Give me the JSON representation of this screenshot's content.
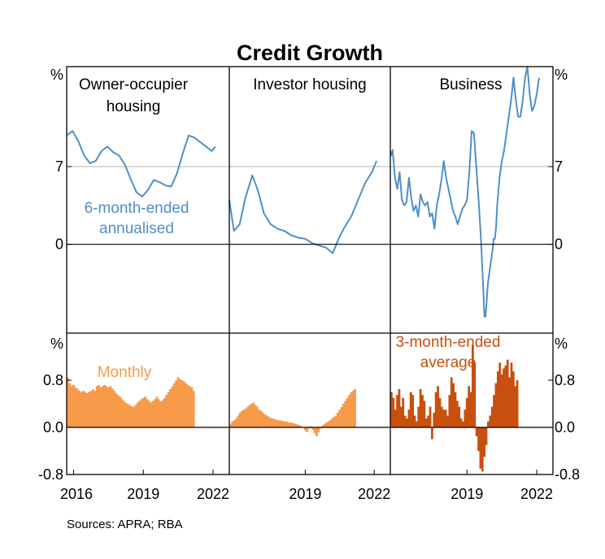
{
  "chart_data": {
    "type": "line+bar",
    "title": "Credit Growth",
    "source": "Sources: APRA; RBA",
    "colors": {
      "owner_line": "#4f8fc8",
      "investor_line": "#4f8fc8",
      "business_line": "#4f8fc8",
      "owner_bar": "#f79a4a",
      "investor_bar": "#f79a4a",
      "business_bar": "#c8500f",
      "refline": "#b4b4b4",
      "axis": "#000000"
    },
    "top": {
      "unit": "%",
      "ylim": [
        -8,
        16
      ],
      "yticks": [
        {
          "value": 0,
          "label": "0"
        },
        {
          "value": 7,
          "label": "7"
        }
      ],
      "reference_line": 7
    },
    "bottom": {
      "unit": "%",
      "ylim": [
        -0.8,
        1.6
      ],
      "yticks": [
        {
          "value": -0.8,
          "label": "-0.8"
        },
        {
          "value": 0.0,
          "label": "0.0"
        },
        {
          "value": 0.8,
          "label": "0.8"
        }
      ]
    },
    "xlim": [
      2015.7,
      2022.7
    ],
    "panels": [
      {
        "id": "owner",
        "title_lines": [
          "Owner-occupier",
          "housing"
        ],
        "xticks": [
          {
            "value": 2016,
            "label": "2016"
          },
          {
            "value": 2019,
            "label": "2019"
          },
          {
            "value": 2022,
            "label": "2022"
          }
        ],
        "line_label_lines": [
          "6-month-ended",
          "annualised"
        ],
        "bar_label_lines": [
          "Monthly"
        ],
        "line": {
          "x": [
            2015.7,
            2015.95,
            2016.2,
            2016.45,
            2016.7,
            2016.95,
            2017.2,
            2017.45,
            2017.7,
            2017.95,
            2018.2,
            2018.45,
            2018.7,
            2018.95,
            2019.2,
            2019.45,
            2019.7,
            2019.95,
            2020.2,
            2020.45,
            2020.7,
            2020.95,
            2021.2,
            2021.45,
            2021.7,
            2021.95,
            2022.1
          ],
          "y": [
            9.8,
            10.2,
            9.3,
            8.0,
            7.3,
            7.5,
            8.4,
            8.8,
            8.3,
            8.0,
            7.2,
            5.9,
            4.7,
            4.3,
            4.9,
            5.8,
            5.6,
            5.3,
            5.2,
            6.4,
            8.2,
            9.8,
            9.6,
            9.2,
            8.8,
            8.4,
            8.8
          ]
        },
        "bars": {
          "x0": 2015.75,
          "step": 0.0833,
          "values": [
            0.85,
            0.75,
            0.7,
            0.72,
            0.68,
            0.65,
            0.62,
            0.6,
            0.62,
            0.6,
            0.58,
            0.6,
            0.62,
            0.65,
            0.62,
            0.7,
            0.72,
            0.68,
            0.7,
            0.72,
            0.7,
            0.68,
            0.7,
            0.66,
            0.62,
            0.58,
            0.55,
            0.52,
            0.48,
            0.45,
            0.42,
            0.4,
            0.38,
            0.36,
            0.35,
            0.38,
            0.42,
            0.45,
            0.48,
            0.5,
            0.52,
            0.48,
            0.45,
            0.42,
            0.45,
            0.48,
            0.52,
            0.48,
            0.44,
            0.46,
            0.5,
            0.55,
            0.6,
            0.65,
            0.7,
            0.75,
            0.8,
            0.85,
            0.82,
            0.8,
            0.78,
            0.75,
            0.72,
            0.7,
            0.68,
            0.62
          ]
        }
      },
      {
        "id": "investor",
        "title_lines": [
          "Investor housing"
        ],
        "xticks": [
          {
            "value": 2019,
            "label": "2019"
          },
          {
            "value": 2022,
            "label": "2022"
          }
        ],
        "line": {
          "x": [
            2015.7,
            2015.9,
            2016.15,
            2016.4,
            2016.7,
            2016.95,
            2017.2,
            2017.5,
            2017.8,
            2018.1,
            2018.4,
            2018.7,
            2019.0,
            2019.3,
            2019.6,
            2019.9,
            2020.2,
            2020.45,
            2020.7,
            2021.0,
            2021.3,
            2021.6,
            2021.9,
            2022.1
          ],
          "y": [
            4.0,
            1.2,
            1.8,
            4.2,
            6.2,
            4.8,
            2.8,
            1.8,
            1.4,
            1.2,
            0.8,
            0.6,
            0.5,
            0.1,
            -0.1,
            -0.3,
            -0.8,
            0.5,
            1.5,
            2.5,
            4.0,
            5.5,
            6.5,
            7.5
          ]
        },
        "bars": {
          "x0": 2015.75,
          "step": 0.0833,
          "values": [
            0.05,
            0.1,
            0.12,
            0.15,
            0.2,
            0.25,
            0.28,
            0.3,
            0.32,
            0.35,
            0.38,
            0.4,
            0.42,
            0.38,
            0.35,
            0.3,
            0.28,
            0.25,
            0.22,
            0.2,
            0.18,
            0.16,
            0.15,
            0.14,
            0.13,
            0.12,
            0.12,
            0.11,
            0.1,
            0.1,
            0.09,
            0.08,
            0.08,
            0.07,
            0.06,
            0.05,
            0.04,
            0.02,
            0.0,
            -0.05,
            -0.08,
            -0.02,
            0.02,
            -0.04,
            -0.1,
            -0.15,
            -0.08,
            -0.02,
            0.03,
            0.06,
            0.08,
            0.1,
            0.12,
            0.15,
            0.18,
            0.2,
            0.25,
            0.3,
            0.35,
            0.4,
            0.45,
            0.5,
            0.55,
            0.6,
            0.62,
            0.65
          ]
        }
      },
      {
        "id": "business",
        "title_lines": [
          "Business"
        ],
        "xticks": [
          {
            "value": 2019,
            "label": "2019"
          },
          {
            "value": 2022,
            "label": "2022"
          }
        ],
        "bar_label_lines": [
          "3-month-ended",
          "average"
        ],
        "line": {
          "x": [
            2015.7,
            2015.75,
            2015.8,
            2015.9,
            2016.0,
            2016.1,
            2016.2,
            2016.3,
            2016.4,
            2016.5,
            2016.6,
            2016.7,
            2016.8,
            2016.9,
            2017.0,
            2017.1,
            2017.2,
            2017.3,
            2017.4,
            2017.5,
            2017.6,
            2017.7,
            2017.8,
            2017.9,
            2018.0,
            2018.1,
            2018.2,
            2018.3,
            2018.4,
            2018.5,
            2018.6,
            2018.7,
            2018.8,
            2018.9,
            2019.0,
            2019.1,
            2019.2,
            2019.3,
            2019.4,
            2019.5,
            2019.6,
            2019.7,
            2019.75,
            2019.8,
            2019.9,
            2020.0,
            2020.1,
            2020.15,
            2020.2,
            2020.25,
            2020.3,
            2020.4,
            2020.5,
            2020.6,
            2020.7,
            2020.8,
            2020.9,
            2021.0,
            2021.1,
            2021.2,
            2021.3,
            2021.4,
            2021.5,
            2021.6,
            2021.7,
            2021.8,
            2021.9,
            2022.0,
            2022.1
          ],
          "y": [
            8.4,
            8.0,
            8.5,
            6.0,
            5.0,
            6.5,
            4.0,
            3.5,
            3.8,
            6.0,
            4.2,
            3.0,
            3.5,
            2.5,
            4.5,
            3.8,
            3.5,
            3.8,
            2.5,
            2.8,
            1.4,
            3.5,
            4.5,
            5.8,
            7.5,
            6.0,
            5.0,
            4.0,
            3.0,
            2.5,
            1.8,
            2.5,
            3.2,
            3.5,
            4.0,
            6.5,
            10.2,
            10.0,
            7.0,
            4.0,
            0.5,
            -4.0,
            -6.5,
            -6.5,
            -3.5,
            -2.0,
            -0.5,
            0.5,
            0.5,
            1.5,
            3.5,
            6.0,
            7.5,
            8.5,
            10.0,
            11.5,
            13.0,
            15.0,
            13.0,
            11.5,
            11.5,
            13.0,
            15.0,
            16.0,
            13.5,
            12.0,
            12.5,
            13.5,
            15.0
          ]
        },
        "bars": {
          "x0": 2015.75,
          "step": 0.0833,
          "values": [
            0.6,
            0.5,
            0.3,
            0.55,
            0.65,
            0.35,
            0.5,
            0.2,
            0.15,
            0.3,
            0.6,
            0.55,
            0.2,
            0.1,
            0.35,
            0.65,
            0.55,
            0.45,
            0.15,
            0.2,
            0.35,
            -0.2,
            0.25,
            0.6,
            0.7,
            0.5,
            0.35,
            0.3,
            0.3,
            0.2,
            0.55,
            0.85,
            0.75,
            0.6,
            0.45,
            0.35,
            0.15,
            0.1,
            0.3,
            0.5,
            0.7,
            0.6,
            1.4,
            1.1,
            -0.15,
            -0.4,
            -0.7,
            -0.75,
            -0.5,
            -0.3,
            0.1,
            0.2,
            0.35,
            0.55,
            0.75,
            0.95,
            1.1,
            0.9,
            1.0,
            1.05,
            1.15,
            0.85,
            1.1,
            0.95,
            0.7,
            0.8
          ]
        }
      }
    ]
  }
}
